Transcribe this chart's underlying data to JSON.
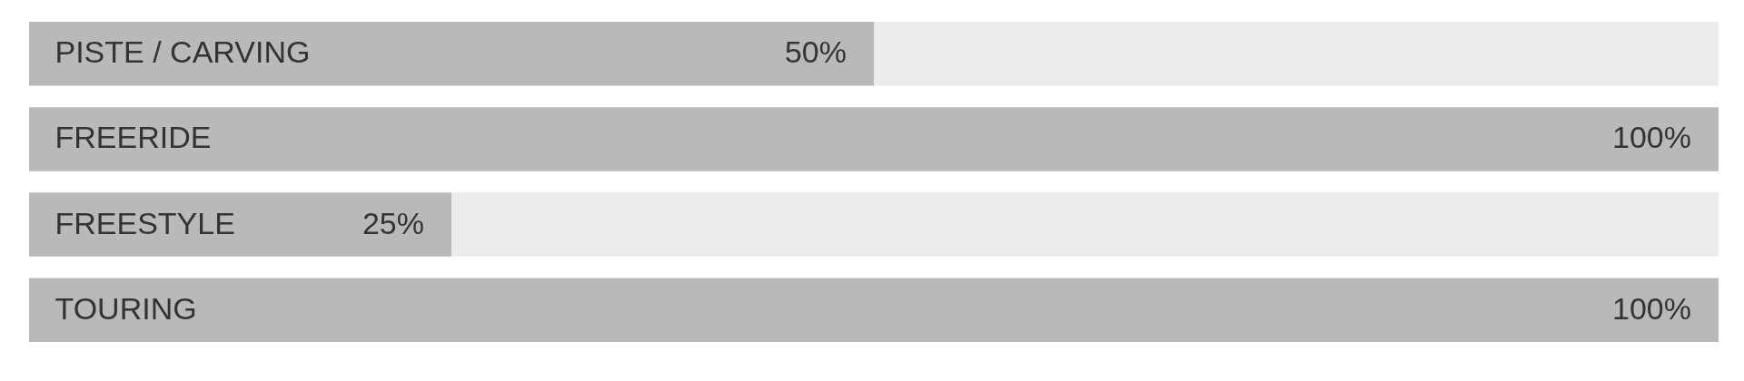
{
  "chart_data": {
    "type": "bar",
    "orientation": "horizontal",
    "stacked": true,
    "categories": [
      "PISTE / CARVING",
      "FREERIDE",
      "FREESTYLE",
      "TOURING"
    ],
    "series": [
      {
        "color": "#b9b9b9",
        "values": [
          50,
          100,
          25,
          100
        ],
        "value_labels": [
          "50%",
          "100%",
          "25%",
          "100%"
        ]
      },
      {
        "color": "#ebebeb",
        "values": [
          50,
          0,
          75,
          0
        ]
      }
    ],
    "xlim": [
      0,
      100
    ],
    "tick_labels": "y"
  }
}
